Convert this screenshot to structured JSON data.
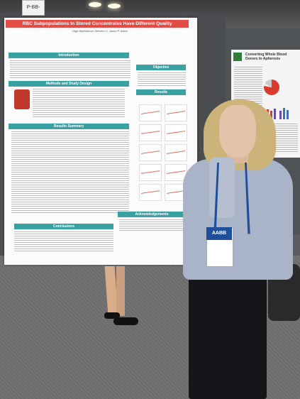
{
  "booth_number": "P-BB-105",
  "poster": {
    "title": "RBC Subpopulations In Stored Concentrates Have Different Quality Characteristics",
    "authors": "Olga Mykhailova, Wenhui Li, Jason P. Acker",
    "sections": {
      "introduction": "Introduction",
      "methods": "Methods and Study Design",
      "objective": "Objective",
      "results": "Results",
      "results_summary": "Results Summary",
      "conclusions": "Conclusions",
      "acknowledgements": "Acknowledgements"
    }
  },
  "second_poster": {
    "title": "Converting Whole Blood Donors to Apheresis"
  },
  "badge": {
    "header": "AABB"
  }
}
